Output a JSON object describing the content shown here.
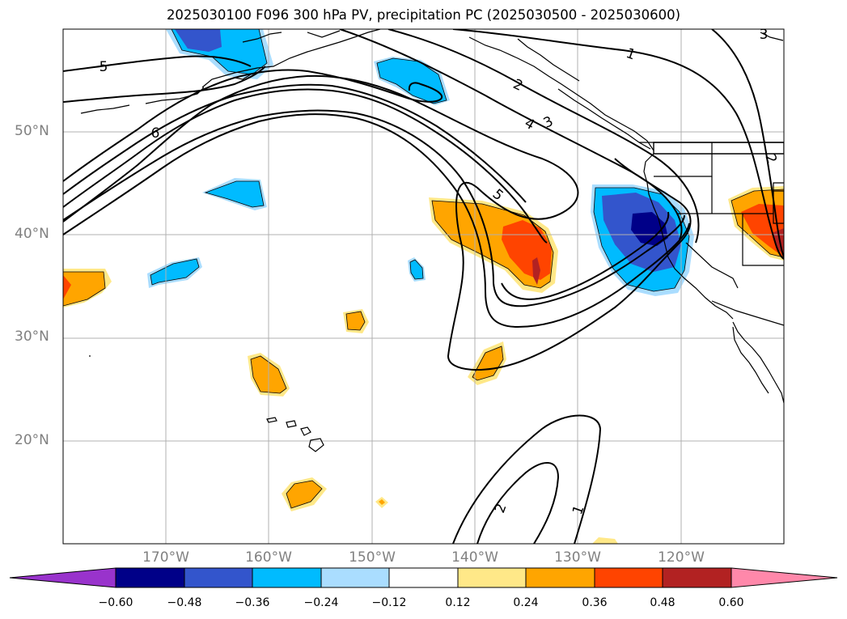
{
  "title": "2025030100 F096 300 hPa PV, precipitation PC (2025030500 - 2025030600)",
  "map": {
    "region": "North-east Pacific Ocean and western North America",
    "lat_labels": [
      "50°N",
      "40°N",
      "30°N",
      "20°N"
    ],
    "lon_labels": [
      "170°W",
      "160°W",
      "150°W",
      "140°W",
      "130°W",
      "120°W"
    ],
    "pv_contour_labels": [
      "1",
      "1",
      "2",
      "2",
      "2",
      "3",
      "3",
      "4",
      "5",
      "5",
      "6"
    ]
  },
  "colorbar": {
    "ticks": [
      "−0.60",
      "−0.48",
      "−0.36",
      "−0.24",
      "−0.12",
      "0.12",
      "0.24",
      "0.36",
      "0.48",
      "0.60"
    ],
    "colors": [
      "#9933cc",
      "#000088",
      "#3355cc",
      "#00bbff",
      "#aaddff",
      "#ffffff",
      "#ffe888",
      "#ffa500",
      "#ff4400",
      "#b22222",
      "#ff88aa"
    ],
    "extend": "both"
  }
}
